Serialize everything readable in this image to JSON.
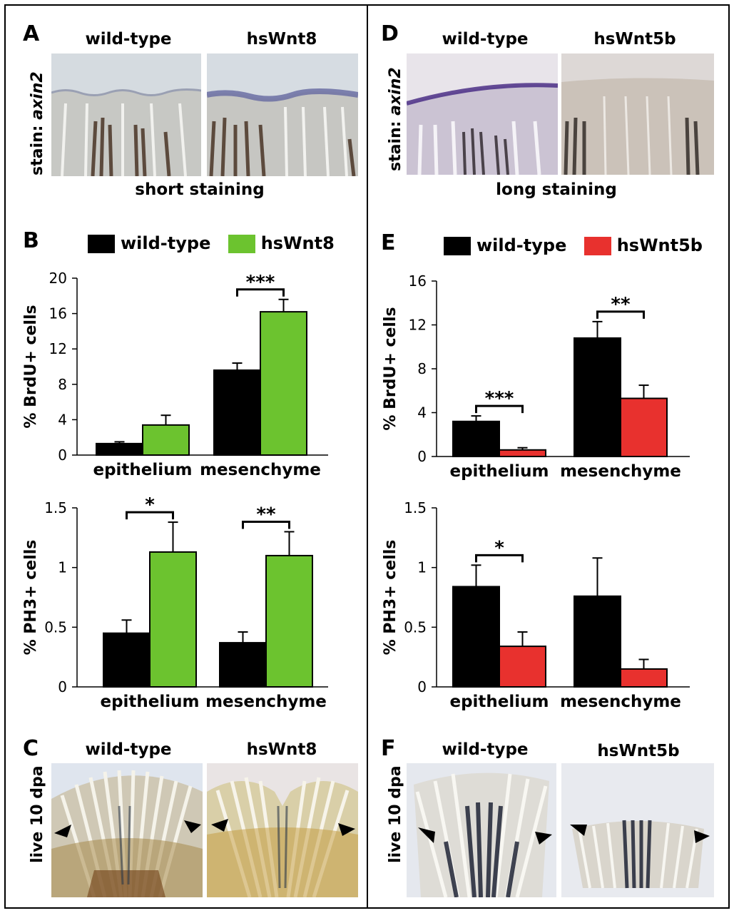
{
  "colors": {
    "wildtype": "#000000",
    "hsWnt8": "#6cc32f",
    "hsWnt5b": "#e8312e"
  },
  "panels": {
    "A": {
      "letter": "A",
      "left_title": "wild-type",
      "right_title": "hsWnt8",
      "stain_prefix": "stain: ",
      "stain_gene": "axin2",
      "caption": "short staining"
    },
    "B": {
      "letter": "B"
    },
    "C": {
      "letter": "C",
      "left_title": "wild-type",
      "right_title": "hsWnt8",
      "side_label": "live 10 dpa"
    },
    "D": {
      "letter": "D",
      "left_title": "wild-type",
      "right_title": "hsWnt5b",
      "stain_prefix": "stain: ",
      "stain_gene": "axin2",
      "caption": "long staining"
    },
    "E": {
      "letter": "E"
    },
    "F": {
      "letter": "F",
      "left_title": "wild-type",
      "right_title": "hsWnt5b",
      "side_label": "live 10 dpa"
    }
  },
  "chart_data": [
    {
      "id": "B-top",
      "type": "bar",
      "ylabel": "% BrdU+ cells",
      "ylim": [
        0,
        20
      ],
      "yticks": [
        "0",
        "4",
        "8",
        "12",
        "16",
        "20"
      ],
      "categories": [
        "epithelium",
        "mesenchyme"
      ],
      "series": [
        {
          "name": "wild-type",
          "color": "#000000",
          "values": [
            1.3,
            9.6
          ],
          "errors": [
            0.2,
            0.8
          ]
        },
        {
          "name": "hsWnt8",
          "color": "#6cc32f",
          "values": [
            3.4,
            16.2
          ],
          "errors": [
            1.1,
            1.4
          ]
        }
      ],
      "significance": [
        "",
        "***"
      ]
    },
    {
      "id": "B-bottom",
      "type": "bar",
      "ylabel": "% PH3+ cells",
      "ylim": [
        0,
        1.5
      ],
      "yticks": [
        "0",
        "0.5",
        "1",
        "1.5"
      ],
      "categories": [
        "epithelium",
        "mesenchyme"
      ],
      "series": [
        {
          "name": "wild-type",
          "color": "#000000",
          "values": [
            0.45,
            0.37
          ],
          "errors": [
            0.11,
            0.09
          ]
        },
        {
          "name": "hsWnt8",
          "color": "#6cc32f",
          "values": [
            1.13,
            1.1
          ],
          "errors": [
            0.25,
            0.2
          ]
        }
      ],
      "significance": [
        "*",
        "**"
      ]
    },
    {
      "id": "E-top",
      "type": "bar",
      "ylabel": "% BrdU+ cells",
      "ylim": [
        0,
        16
      ],
      "yticks": [
        "0",
        "4",
        "8",
        "12",
        "16"
      ],
      "categories": [
        "epithelium",
        "mesenchyme"
      ],
      "series": [
        {
          "name": "wild-type",
          "color": "#000000",
          "values": [
            3.2,
            10.8
          ],
          "errors": [
            0.5,
            1.5
          ]
        },
        {
          "name": "hsWnt5b",
          "color": "#e8312e",
          "values": [
            0.6,
            5.3
          ],
          "errors": [
            0.2,
            1.2
          ]
        }
      ],
      "significance": [
        "***",
        "**"
      ]
    },
    {
      "id": "E-bottom",
      "type": "bar",
      "ylabel": "% PH3+ cells",
      "ylim": [
        0,
        1.5
      ],
      "yticks": [
        "0",
        "0.5",
        "1",
        "1.5"
      ],
      "categories": [
        "epithelium",
        "mesenchyme"
      ],
      "series": [
        {
          "name": "wild-type",
          "color": "#000000",
          "values": [
            0.84,
            0.76
          ],
          "errors": [
            0.18,
            0.32
          ]
        },
        {
          "name": "hsWnt5b",
          "color": "#e8312e",
          "values": [
            0.34,
            0.15
          ],
          "errors": [
            0.12,
            0.08
          ]
        }
      ],
      "significance": [
        "*",
        ""
      ]
    }
  ]
}
